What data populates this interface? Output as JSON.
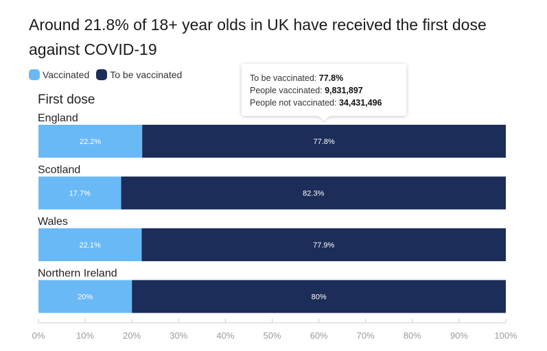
{
  "title": "Around 21.8% of 18+ year olds in UK have received the first dose against COVID-19",
  "legend": [
    {
      "label": "Vaccinated",
      "color": "#6ab9f7"
    },
    {
      "label": "To be vaccinated",
      "color": "#1b2d58"
    }
  ],
  "tooltip": {
    "to_be_label": "To be vaccinated: ",
    "to_be_value": "77.8%",
    "vaccinated_label": "People vaccinated: ",
    "vaccinated_value": "9,831,897",
    "not_vaccinated_label": "People not vaccinated: ",
    "not_vaccinated_value": "34,431,496"
  },
  "chart_data": {
    "type": "bar",
    "orientation": "horizontal",
    "stacked": true,
    "subtitle": "First dose",
    "categories": [
      "England",
      "Scotland",
      "Wales",
      "Northern Ireland"
    ],
    "series": [
      {
        "name": "Vaccinated",
        "color": "#6ab9f7",
        "values": [
          22.2,
          17.7,
          22.1,
          20
        ],
        "labels": [
          "22.2%",
          "17.7%",
          "22.1%",
          "20%"
        ]
      },
      {
        "name": "To be vaccinated",
        "color": "#1b2d58",
        "values": [
          77.8,
          82.3,
          77.9,
          80
        ],
        "labels": [
          "77.8%",
          "82.3%",
          "77.9%",
          "80%"
        ]
      }
    ],
    "xlim": [
      0,
      100
    ],
    "xticks": [
      "0%",
      "10%",
      "20%",
      "30%",
      "40%",
      "50%",
      "60%",
      "70%",
      "80%",
      "90%",
      "100%"
    ],
    "legend_position": "top-left"
  }
}
